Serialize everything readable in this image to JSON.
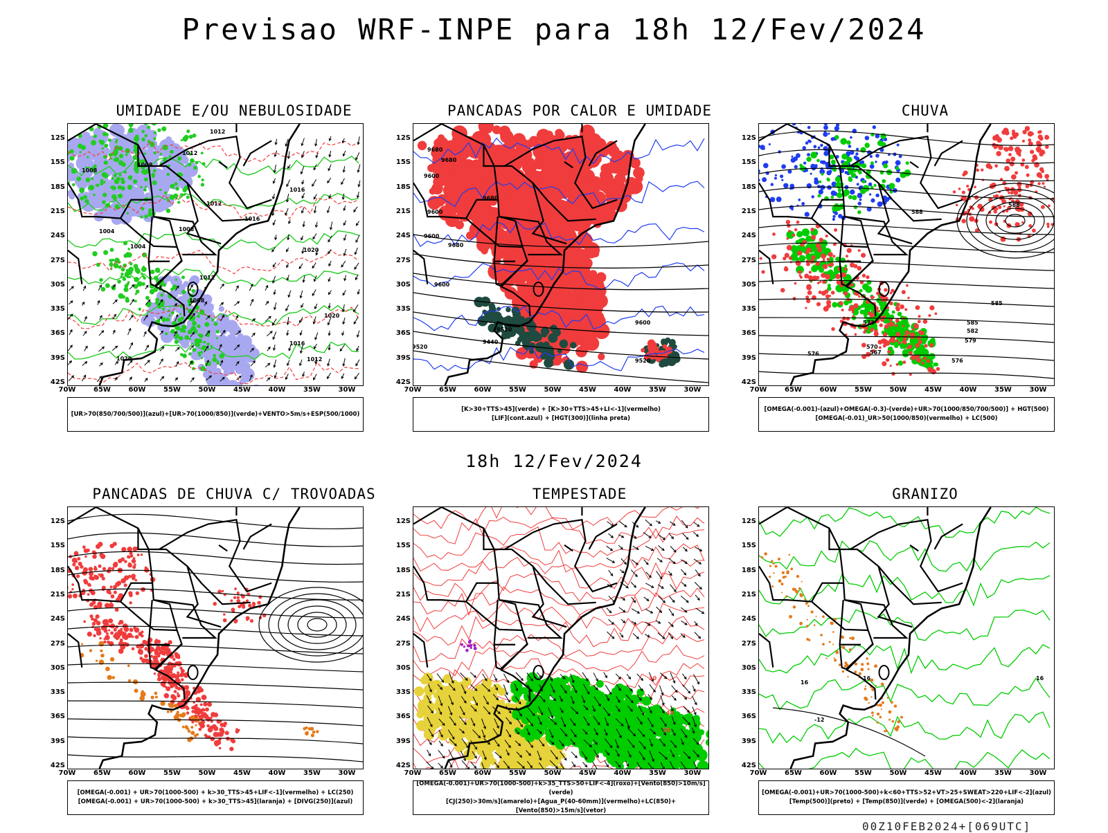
{
  "title": "Previsao WRF-INPE  para 18h 12/Fev/2024",
  "subtitle": "18h 12/Fev/2024",
  "footer": "00Z10FEB2024+[069UTC]",
  "axes": {
    "lat_labels": [
      "12S",
      "15S",
      "18S",
      "21S",
      "24S",
      "27S",
      "30S",
      "33S",
      "36S",
      "39S",
      "42S"
    ],
    "lon_labels": [
      "70W",
      "65W",
      "60W",
      "55W",
      "50W",
      "45W",
      "40W",
      "35W",
      "30W"
    ]
  },
  "colors": {
    "humidity_blue": "#a8a8f0",
    "humidity_green": "#22cc22",
    "red": "#f03c3c",
    "blue": "#1f3cf0",
    "green": "#00cc00",
    "dark_teal": "#1f4a40",
    "orange": "#e57a1a",
    "yellow": "#e6d23a",
    "purple": "#a020c0"
  },
  "panels": [
    {
      "title": "UMIDADE E/OU NEBULOSIDADE",
      "legend": [
        "[UR>70(850/700/500)](azul)+[UR>70(1000/850)](verde)+VENTO>5m/s+ESP(500/1000)"
      ],
      "contour_labels": [
        "1012",
        "1012",
        "1008",
        "1008",
        "1012",
        "1016",
        "1016",
        "1004",
        "1004",
        "1008",
        "1012",
        "1020",
        "1008",
        "1020",
        "1016",
        "1012",
        "1020"
      ]
    },
    {
      "title": "PANCADAS POR CALOR E UMIDADE",
      "legend": [
        "[K>30+TTS>45](verde)  +  [K>30+TTS>45+LI<-1](vermelho)",
        "[LIF](cont.azul)  +  [HGT(300)](linha preta)"
      ],
      "contour_labels": [
        "9680",
        "9680",
        "9600",
        "9680",
        "9600",
        "9600",
        "9680",
        "9600",
        "9520",
        "9440",
        "9600",
        "9520",
        "9520"
      ]
    },
    {
      "title": "CHUVA",
      "legend": [
        "[OMEGA(-0.001)-(azul)+OMEGA(-0.3)-(verde)+UR>70(1000/850/700/500)]  +  HGT(500)",
        "[OMEGA(-0.01)_UR>50(1000/850)(vermelho)  +  LC(500)"
      ],
      "contour_labels": [
        "588",
        "588",
        "585",
        "585",
        "582",
        "579",
        "576",
        "573",
        "570",
        "567",
        "576"
      ]
    },
    {
      "title": "PANCADAS DE CHUVA C/ TROVOADAS",
      "legend": [
        "[OMEGA(-0.001)  +  UR>70(1000-500)  +  k>30_TTS>45+LIF<-1](vermelho)  +  LC(250)",
        "[OMEGA(-0.001)  +  UR>70(1000-500)  +  k>30_TTS>45](laranja)  +  [DIVG(250)](azul)"
      ],
      "contour_labels": []
    },
    {
      "title": "TEMPESTADE",
      "legend": [
        "[OMEGA(-0.001)+UR>70(1000-500)+k>35_TTS>50+LIF<-4](roxo)+[Vento(850)>10m/s](verde)",
        "[CJ(250)>30m/s](amarelo)+[Agua_P(40-60mm)](vermelho)+LC(850)+[Vento(850)>15m/s](vetor)"
      ],
      "contour_labels": [
        "10",
        "40",
        "30"
      ]
    },
    {
      "title": "GRANIZO",
      "legend": [
        "[OMEGA(-0.001)+UR>70(1000-500)+k<60+TTS>52+VT>25+SWEAT>220+LIF<-2](azul)",
        "[Temp(500)](preto)  +  [Temp(850)](verde)  +  [OMEGA(500)<-2](laranja)"
      ],
      "contour_labels": [
        "-12",
        "16",
        "16",
        "16"
      ]
    }
  ]
}
